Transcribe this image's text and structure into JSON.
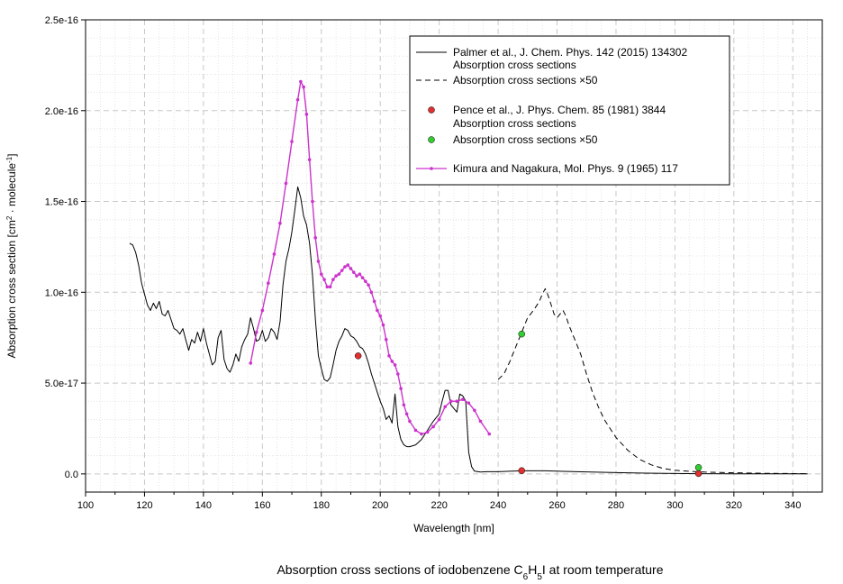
{
  "chart_data": {
    "type": "line",
    "title": "Absorption cross sections of iodobenzene C6H5I at room temperature",
    "title_parts": {
      "prefix": "Absorption cross sections of iodobenzene C",
      "sub1": "6",
      "h": "H",
      "sub2": "5",
      "suffix": "I at room temperature"
    },
    "xlabel": "Wavelength [nm]",
    "ylabel": "Absorption cross section [cm2 · molecule-1]",
    "ylabel_parts": {
      "a": "Absorption cross section [cm",
      "sup1": "2",
      "b": " · molecule",
      "sup2": "-1",
      "c": "]"
    },
    "xlim": [
      100,
      350
    ],
    "ylim": [
      -1e-17,
      2.5e-16
    ],
    "grid": true,
    "legend_position": "top-right",
    "x_ticks": [
      {
        "v": 100,
        "label": "100"
      },
      {
        "v": 120,
        "label": "120"
      },
      {
        "v": 140,
        "label": "140"
      },
      {
        "v": 160,
        "label": "160"
      },
      {
        "v": 180,
        "label": "180"
      },
      {
        "v": 200,
        "label": "200"
      },
      {
        "v": 220,
        "label": "220"
      },
      {
        "v": 240,
        "label": "240"
      },
      {
        "v": 260,
        "label": "260"
      },
      {
        "v": 280,
        "label": "280"
      },
      {
        "v": 300,
        "label": "300"
      },
      {
        "v": 320,
        "label": "320"
      },
      {
        "v": 340,
        "label": "340"
      }
    ],
    "y_ticks": [
      {
        "v": 0,
        "label": "0.0"
      },
      {
        "v": 5e-17,
        "label": "5.0e-17"
      },
      {
        "v": 1e-16,
        "label": "1.0e-16"
      },
      {
        "v": 1.5e-16,
        "label": "1.5e-16"
      },
      {
        "v": 2e-16,
        "label": "2.0e-16"
      },
      {
        "v": 2.5e-16,
        "label": "2.5e-16"
      }
    ],
    "series": [
      {
        "name": "Palmer et al., J. Chem. Phys. 142 (2015) 134302",
        "style": "solid",
        "color": "#000000",
        "points": [
          [
            115,
            1.27e-16
          ],
          [
            116,
            1.26e-16
          ],
          [
            117,
            1.22e-16
          ],
          [
            118,
            1.15e-16
          ],
          [
            119,
            1.05e-16
          ],
          [
            120,
            9.9e-17
          ],
          [
            121,
            9.3e-17
          ],
          [
            122,
            9e-17
          ],
          [
            123,
            9.4e-17
          ],
          [
            124,
            9.1e-17
          ],
          [
            125,
            9.5e-17
          ],
          [
            126,
            8.8e-17
          ],
          [
            127,
            8.7e-17
          ],
          [
            128,
            9e-17
          ],
          [
            129,
            8.5e-17
          ],
          [
            130,
            8e-17
          ],
          [
            131,
            7.9e-17
          ],
          [
            132,
            7.7e-17
          ],
          [
            133,
            8e-17
          ],
          [
            134,
            7.4e-17
          ],
          [
            135,
            6.8e-17
          ],
          [
            136,
            7.4e-17
          ],
          [
            137,
            7.2e-17
          ],
          [
            138,
            7.8e-17
          ],
          [
            139,
            7.3e-17
          ],
          [
            140,
            8e-17
          ],
          [
            141,
            7.2e-17
          ],
          [
            142,
            6.6e-17
          ],
          [
            143,
            6e-17
          ],
          [
            144,
            6.2e-17
          ],
          [
            145,
            7.5e-17
          ],
          [
            146,
            7.9e-17
          ],
          [
            147,
            6.3e-17
          ],
          [
            148,
            5.8e-17
          ],
          [
            149,
            5.6e-17
          ],
          [
            150,
            6e-17
          ],
          [
            151,
            6.6e-17
          ],
          [
            152,
            6.2e-17
          ],
          [
            153,
            7e-17
          ],
          [
            154,
            7.4e-17
          ],
          [
            155,
            7.7e-17
          ],
          [
            156,
            8.6e-17
          ],
          [
            157,
            8e-17
          ],
          [
            158,
            7.3e-17
          ],
          [
            159,
            7.4e-17
          ],
          [
            160,
            7.9e-17
          ],
          [
            161,
            7.3e-17
          ],
          [
            162,
            7.5e-17
          ],
          [
            163,
            8e-17
          ],
          [
            164,
            7.8e-17
          ],
          [
            165,
            7.4e-17
          ],
          [
            166,
            8.4e-17
          ],
          [
            167,
            1.04e-16
          ],
          [
            168,
            1.17e-16
          ],
          [
            169,
            1.24e-16
          ],
          [
            170,
            1.33e-16
          ],
          [
            171,
            1.45e-16
          ],
          [
            172,
            1.58e-16
          ],
          [
            173,
            1.52e-16
          ],
          [
            174,
            1.42e-16
          ],
          [
            175,
            1.37e-16
          ],
          [
            176,
            1.27e-16
          ],
          [
            177,
            1.1e-16
          ],
          [
            178,
            8.5e-17
          ],
          [
            179,
            6.5e-17
          ],
          [
            180,
            5.8e-17
          ],
          [
            181,
            5.2e-17
          ],
          [
            182,
            5.1e-17
          ],
          [
            183,
            5.3e-17
          ],
          [
            184,
            6e-17
          ],
          [
            185,
            6.8e-17
          ],
          [
            186,
            7.3e-17
          ],
          [
            187,
            7.6e-17
          ],
          [
            188,
            8e-17
          ],
          [
            189,
            7.9e-17
          ],
          [
            190,
            7.6e-17
          ],
          [
            191,
            7.5e-17
          ],
          [
            192,
            7.3e-17
          ],
          [
            193,
            7e-17
          ],
          [
            194,
            6.9e-17
          ],
          [
            195,
            6.6e-17
          ],
          [
            196,
            6.1e-17
          ],
          [
            197,
            5.5e-17
          ],
          [
            198,
            5e-17
          ],
          [
            199,
            4.5e-17
          ],
          [
            200,
            4e-17
          ],
          [
            201,
            3.6e-17
          ],
          [
            202,
            3e-17
          ],
          [
            203,
            3.2e-17
          ],
          [
            204,
            2.8e-17
          ],
          [
            205,
            4.4e-17
          ],
          [
            206,
            2.6e-17
          ],
          [
            207,
            1.9e-17
          ],
          [
            208,
            1.6e-17
          ],
          [
            209,
            1.5e-17
          ],
          [
            210,
            1.5e-17
          ],
          [
            212,
            1.6e-17
          ],
          [
            214,
            1.9e-17
          ],
          [
            216,
            2.4e-17
          ],
          [
            218,
            2.9e-17
          ],
          [
            220,
            3.3e-17
          ],
          [
            221,
            4e-17
          ],
          [
            222,
            4.6e-17
          ],
          [
            223,
            4.6e-17
          ],
          [
            224,
            3.8e-17
          ],
          [
            225,
            3.6e-17
          ],
          [
            226,
            3.4e-17
          ],
          [
            227,
            4.4e-17
          ],
          [
            228,
            4.3e-17
          ],
          [
            229,
            4e-17
          ],
          [
            230,
            1.2e-17
          ],
          [
            231,
            4e-18
          ],
          [
            232,
            1.5e-18
          ],
          [
            234,
            1e-18
          ],
          [
            236,
            1.2e-18
          ],
          [
            240,
            1.2e-18
          ],
          [
            248,
            1.7e-18
          ],
          [
            256,
            1.7e-18
          ],
          [
            262,
            1.4e-18
          ],
          [
            270,
            1.1e-18
          ],
          [
            280,
            7e-19
          ],
          [
            290,
            4e-19
          ],
          [
            300,
            2e-19
          ],
          [
            310,
            1e-19
          ],
          [
            320,
            5e-20
          ],
          [
            345,
            0.0
          ]
        ]
      },
      {
        "name": "Absorption cross sections ×50",
        "style": "dashed",
        "color": "#000000",
        "points": [
          [
            240,
            5.2e-17
          ],
          [
            242,
            5.5e-17
          ],
          [
            244,
            6.2e-17
          ],
          [
            246,
            7e-17
          ],
          [
            248,
            7.8e-17
          ],
          [
            250,
            8.6e-17
          ],
          [
            252,
            9e-17
          ],
          [
            254,
            9.5e-17
          ],
          [
            255,
            9.9e-17
          ],
          [
            256,
            1.02e-16
          ],
          [
            257,
            9.8e-17
          ],
          [
            258,
            9.3e-17
          ],
          [
            259,
            8.8e-17
          ],
          [
            260,
            8.6e-17
          ],
          [
            261,
            8.8e-17
          ],
          [
            262,
            9e-17
          ],
          [
            263,
            8.7e-17
          ],
          [
            264,
            8.2e-17
          ],
          [
            266,
            7.4e-17
          ],
          [
            268,
            6.6e-17
          ],
          [
            270,
            5.5e-17
          ],
          [
            272,
            4.5e-17
          ],
          [
            274,
            3.7e-17
          ],
          [
            276,
            3e-17
          ],
          [
            278,
            2.5e-17
          ],
          [
            280,
            2e-17
          ],
          [
            284,
            1.3e-17
          ],
          [
            288,
            8e-18
          ],
          [
            292,
            5e-18
          ],
          [
            296,
            3e-18
          ],
          [
            300,
            2e-18
          ],
          [
            305,
            1.4e-18
          ],
          [
            310,
            1e-18
          ],
          [
            315,
            8e-19
          ],
          [
            320,
            6e-19
          ],
          [
            330,
            3e-19
          ],
          [
            345,
            1e-19
          ]
        ]
      },
      {
        "name": "Kimura and Nagakura, Mol. Phys. 9 (1965) 117",
        "style": "solid-markers",
        "color": "#cc33cc",
        "points": [
          [
            156,
            6.1e-17
          ],
          [
            158,
            7.8e-17
          ],
          [
            160,
            9e-17
          ],
          [
            162,
            1.05e-16
          ],
          [
            164,
            1.21e-16
          ],
          [
            166,
            1.38e-16
          ],
          [
            168,
            1.6e-16
          ],
          [
            170,
            1.83e-16
          ],
          [
            172,
            2.06e-16
          ],
          [
            173,
            2.16e-16
          ],
          [
            174,
            2.13e-16
          ],
          [
            175,
            1.98e-16
          ],
          [
            176,
            1.73e-16
          ],
          [
            177,
            1.5e-16
          ],
          [
            178,
            1.3e-16
          ],
          [
            179,
            1.17e-16
          ],
          [
            180,
            1.1e-16
          ],
          [
            181,
            1.07e-16
          ],
          [
            182,
            1.03e-16
          ],
          [
            183,
            1.03e-16
          ],
          [
            184,
            1.07e-16
          ],
          [
            185,
            1.09e-16
          ],
          [
            186,
            1.1e-16
          ],
          [
            187,
            1.12e-16
          ],
          [
            188,
            1.14e-16
          ],
          [
            189,
            1.15e-16
          ],
          [
            190,
            1.13e-16
          ],
          [
            191,
            1.11e-16
          ],
          [
            192,
            1.09e-16
          ],
          [
            193,
            1.1e-16
          ],
          [
            194,
            1.08e-16
          ],
          [
            195,
            1.06e-16
          ],
          [
            196,
            1.04e-16
          ],
          [
            197,
            1e-16
          ],
          [
            198,
            9.5e-17
          ],
          [
            199,
            9e-17
          ],
          [
            200,
            8.7e-17
          ],
          [
            201,
            8.2e-17
          ],
          [
            202,
            7.4e-17
          ],
          [
            203,
            6.5e-17
          ],
          [
            204,
            6.2e-17
          ],
          [
            205,
            6e-17
          ],
          [
            206,
            5.5e-17
          ],
          [
            207,
            4.7e-17
          ],
          [
            208,
            3.8e-17
          ],
          [
            209,
            3.3e-17
          ],
          [
            210,
            2.9e-17
          ],
          [
            212,
            2.4e-17
          ],
          [
            214,
            2.2e-17
          ],
          [
            216,
            2.3e-17
          ],
          [
            218,
            2.6e-17
          ],
          [
            220,
            3e-17
          ],
          [
            222,
            3.7e-17
          ],
          [
            224,
            4e-17
          ],
          [
            226,
            4e-17
          ],
          [
            228,
            4.1e-17
          ],
          [
            230,
            3.9e-17
          ],
          [
            232,
            3.5e-17
          ],
          [
            234,
            2.9e-17
          ],
          [
            237,
            2.2e-17
          ]
        ]
      }
    ],
    "point_series": [
      {
        "name": "Pence et al., J. Phys. Chem. 85 (1981) 3844",
        "color": "#e03030",
        "points": [
          [
            192.5,
            6.5e-17
          ],
          [
            248,
            1.8e-18
          ],
          [
            308,
            2e-19
          ]
        ]
      },
      {
        "name": "Absorption cross sections ×50",
        "color": "#33cc33",
        "points": [
          [
            248,
            7.7e-17
          ],
          [
            308,
            3.5e-18
          ]
        ]
      }
    ],
    "legend": {
      "palmer_line1": "Palmer et al., J. Chem. Phys. 142 (2015) 134302",
      "palmer_line2": "Absorption cross sections",
      "palmer_x50": "Absorption cross sections ×50",
      "pence_line1": "Pence et al., J. Phys. Chem. 85 (1981) 3844",
      "pence_line2": "Absorption cross sections",
      "pence_x50": "Absorption cross sections ×50",
      "kimura": "Kimura and Nagakura, Mol. Phys. 9 (1965) 117"
    }
  }
}
